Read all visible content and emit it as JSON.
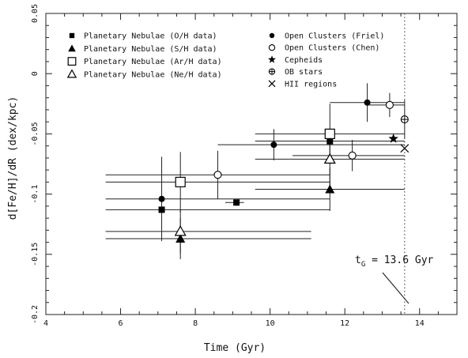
{
  "chart_data": {
    "type": "scatter",
    "xlabel": "Time (Gyr)",
    "ylabel": "d[Fe/H]/dR (dex/kpc)",
    "xlim": [
      4,
      15
    ],
    "ylim": [
      -0.2,
      0.05
    ],
    "x_ticks": [
      4,
      6,
      8,
      10,
      12,
      14
    ],
    "x_tick_labels": [
      "4",
      "6",
      "8",
      "10",
      "12",
      "14"
    ],
    "y_ticks": [
      0.05,
      0,
      -0.05,
      -0.1,
      -0.15,
      -0.2
    ],
    "y_tick_labels": [
      "0.05",
      "0",
      "-0.05",
      "-0.1",
      "-0.15",
      "-0.2"
    ],
    "grid": false,
    "legend_position": "top",
    "annotation": {
      "prefix": "t",
      "subscript": "G",
      "suffix": " = 13.6 Gyr",
      "x": 13.6
    },
    "series": [
      {
        "name": "Planetary Nebulae (O/H data)",
        "marker": "square-filled",
        "points": [
          {
            "x": 7.1,
            "y": -0.113,
            "xerr_lo": 5.6,
            "xerr_hi": 11.6,
            "yerr": 0
          },
          {
            "x": 9.1,
            "y": -0.107,
            "xerr_lo": 8.8,
            "xerr_hi": 9.3,
            "yerr": 0
          },
          {
            "x": 11.6,
            "y": -0.056,
            "xerr_lo": 9.6,
            "xerr_hi": 13.6,
            "yerr": 0
          }
        ]
      },
      {
        "name": "Planetary Nebulae (S/H data)",
        "marker": "triangle-filled",
        "points": [
          {
            "x": 7.6,
            "y": -0.137,
            "xerr_lo": 5.6,
            "xerr_hi": 11.1,
            "yerr": 0.017
          },
          {
            "x": 11.6,
            "y": -0.096,
            "xerr_lo": 9.6,
            "xerr_hi": 13.6,
            "yerr": 0.018
          }
        ]
      },
      {
        "name": "Planetary Nebulae (Ar/H data)",
        "marker": "square-open",
        "points": [
          {
            "x": 7.6,
            "y": -0.09,
            "xerr_lo": 5.6,
            "xerr_hi": 11.6,
            "yerr": 0.025
          },
          {
            "x": 11.6,
            "y": -0.05,
            "xerr_lo": 9.6,
            "xerr_hi": 13.6,
            "yerr": 0.025
          }
        ]
      },
      {
        "name": "Planetary Nebulae (Ne/H data)",
        "marker": "triangle-open",
        "points": [
          {
            "x": 7.6,
            "y": -0.131,
            "xerr_lo": 5.6,
            "xerr_hi": 11.1,
            "yerr": 0.018
          },
          {
            "x": 11.6,
            "y": -0.071,
            "xerr_lo": 9.6,
            "xerr_hi": 13.6,
            "yerr": 0.025
          }
        ]
      },
      {
        "name": "Open Clusters (Friel)",
        "marker": "circle-filled",
        "points": [
          {
            "x": 7.1,
            "y": -0.104,
            "xerr_lo": 5.6,
            "xerr_hi": 11.6,
            "yerr": 0.035
          },
          {
            "x": 10.1,
            "y": -0.059,
            "xerr_lo": 8.6,
            "xerr_hi": 13.6,
            "yerr": 0.013
          },
          {
            "x": 12.6,
            "y": -0.024,
            "xerr_lo": 11.6,
            "xerr_hi": 13.6,
            "yerr": 0.016
          }
        ]
      },
      {
        "name": "Open Clusters (Chen)",
        "marker": "circle-open",
        "points": [
          {
            "x": 8.6,
            "y": -0.084,
            "xerr_lo": 5.6,
            "xerr_hi": 11.6,
            "yerr": 0.02
          },
          {
            "x": 12.2,
            "y": -0.068,
            "xerr_lo": 10.6,
            "xerr_hi": 13.6,
            "yerr": 0.013
          },
          {
            "x": 13.2,
            "y": -0.026,
            "xerr_lo": 12.6,
            "xerr_hi": 13.6,
            "yerr": 0.01
          }
        ]
      },
      {
        "name": "Cepheids",
        "marker": "star-filled",
        "points": [
          {
            "x": 13.3,
            "y": -0.054,
            "xerr_lo": 13.3,
            "xerr_hi": 13.3,
            "yerr": 0
          }
        ]
      },
      {
        "name": "OB stars",
        "marker": "circle-plus",
        "points": [
          {
            "x": 13.6,
            "y": -0.038,
            "xerr_lo": 13.6,
            "xerr_hi": 13.6,
            "yerr": 0.016
          }
        ]
      },
      {
        "name": "HII regions",
        "marker": "cross",
        "points": [
          {
            "x": 13.6,
            "y": -0.062,
            "xerr_lo": 13.6,
            "xerr_hi": 13.6,
            "yerr": 0
          }
        ]
      }
    ]
  }
}
